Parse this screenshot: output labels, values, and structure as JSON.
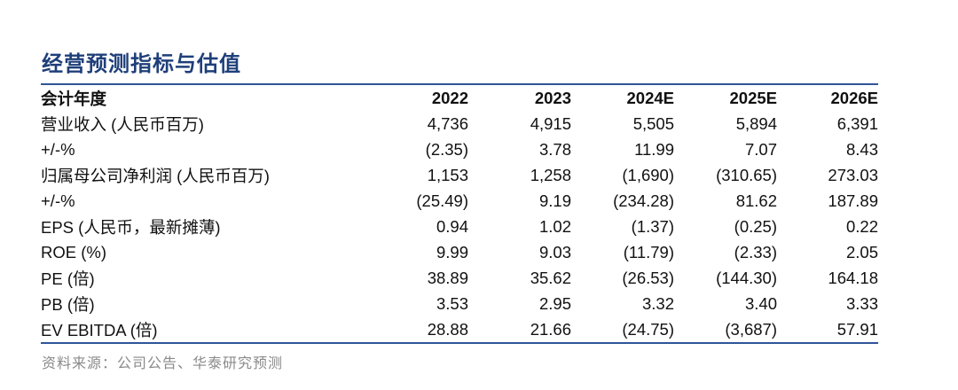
{
  "title": "经营预测指标与估值",
  "table": {
    "header": [
      "会计年度",
      "2022",
      "2023",
      "2024E",
      "2025E",
      "2026E"
    ],
    "rows": [
      [
        "营业收入 (人民币百万)",
        "4,736",
        "4,915",
        "5,505",
        "5,894",
        "6,391"
      ],
      [
        "+/-%",
        "(2.35)",
        "3.78",
        "11.99",
        "7.07",
        "8.43"
      ],
      [
        "归属母公司净利润 (人民币百万)",
        "1,153",
        "1,258",
        "(1,690)",
        "(310.65)",
        "273.03"
      ],
      [
        "+/-%",
        "(25.49)",
        "9.19",
        "(234.28)",
        "81.62",
        "187.89"
      ],
      [
        "EPS (人民币，最新摊薄)",
        "0.94",
        "1.02",
        "(1.37)",
        "(0.25)",
        "0.22"
      ],
      [
        "ROE (%)",
        "9.99",
        "9.03",
        "(11.79)",
        "(2.33)",
        "2.05"
      ],
      [
        "PE (倍)",
        "38.89",
        "35.62",
        "(26.53)",
        "(144.30)",
        "164.18"
      ],
      [
        "PB (倍)",
        "3.53",
        "2.95",
        "3.32",
        "3.40",
        "3.33"
      ],
      [
        "EV EBITDA (倍)",
        "28.88",
        "21.66",
        "(24.75)",
        "(3,687)",
        "57.91"
      ]
    ]
  },
  "source": "资料来源：公司公告、华泰研究预测",
  "colors": {
    "title": "#1f3f7a",
    "rule": "#2f5597",
    "source": "#8a8a8a"
  }
}
